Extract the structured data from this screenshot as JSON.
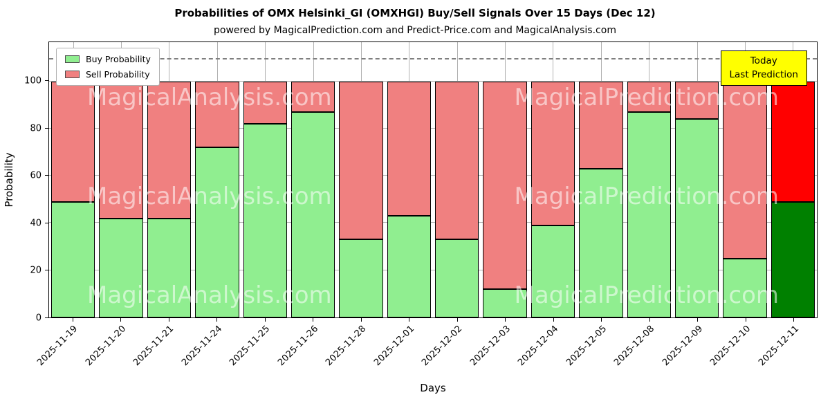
{
  "chart_data": {
    "type": "bar",
    "stacked": true,
    "title": "Probabilities of OMX Helsinki_GI (OMXHGI) Buy/Sell Signals Over 15 Days (Dec 12)",
    "subtitle": "powered by MagicalPrediction.com and Predict-Price.com and MagicalAnalysis.com",
    "xlabel": "Days",
    "ylabel": "Probability",
    "categories": [
      "2025-11-19",
      "2025-11-20",
      "2025-11-21",
      "2025-11-24",
      "2025-11-25",
      "2025-11-26",
      "2025-11-28",
      "2025-12-01",
      "2025-12-02",
      "2025-12-03",
      "2025-12-04",
      "2025-12-05",
      "2025-12-08",
      "2025-12-09",
      "2025-12-10",
      "2025-12-11"
    ],
    "series": [
      {
        "name": "Buy Probability",
        "color": "#90ee90",
        "values": [
          49,
          42,
          42,
          72,
          82,
          87,
          33,
          43,
          33,
          12,
          39,
          63,
          87,
          84,
          25,
          49
        ]
      },
      {
        "name": "Sell Probability",
        "color": "#f08080",
        "values": [
          51,
          58,
          58,
          28,
          18,
          13,
          67,
          57,
          67,
          88,
          61,
          37,
          13,
          16,
          75,
          51
        ]
      }
    ],
    "last_bar_colors": {
      "buy": "#008000",
      "sell": "#ff0000"
    },
    "yticks": [
      0,
      20,
      40,
      60,
      80,
      100
    ],
    "ylim": [
      0,
      116.6
    ],
    "dashed_line_y": 110,
    "grid": true,
    "legend_position": "upper left",
    "annotation": {
      "lines": [
        "Today",
        "Last Prediction"
      ],
      "bg": "#ffff00"
    },
    "watermarks": [
      "MagicalAnalysis.com",
      "MagicalPrediction.com"
    ]
  }
}
